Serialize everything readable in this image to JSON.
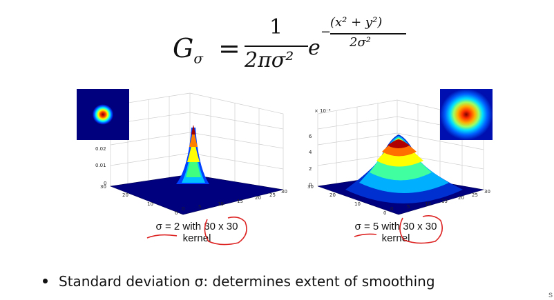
{
  "formula": {
    "lhs": "G",
    "lhs_sub": "σ",
    "equals": "=",
    "numerator": "1",
    "denominator": "2πσ²",
    "base": "e",
    "exp_sign": "−",
    "exp_numerator": "(x² + y²)",
    "exp_denominator": "2σ²"
  },
  "plots": {
    "left": {
      "z_ticks": [
        "0.02",
        "0.01",
        "0"
      ],
      "y_ticks": [
        "30",
        "20",
        "10",
        "0"
      ],
      "x_ticks": [
        "0",
        "5",
        "10",
        "15",
        "20",
        "25",
        "30"
      ],
      "caption_line1": "σ = 2 with 30 x 30",
      "caption_line2": "kernel",
      "inset_name": "gaussian-kernel-sigma-2"
    },
    "right": {
      "z_scale": "× 10⁻³",
      "z_ticks": [
        "6",
        "4",
        "2",
        "0"
      ],
      "y_ticks": [
        "30",
        "20",
        "10",
        "0"
      ],
      "x_ticks": [
        "0",
        "5",
        "10",
        "15",
        "20",
        "25",
        "30"
      ],
      "caption_line1": "σ = 5 with 30 x 30",
      "caption_line2": "kernel",
      "inset_name": "gaussian-kernel-sigma-5"
    }
  },
  "bullet": {
    "text": "Standard deviation σ: determines extent of smoothing"
  },
  "corner_text": "S",
  "colors": {
    "jet_low": "#00007f",
    "jet_mid": "#00ffff",
    "jet_high": "#7f0000"
  }
}
